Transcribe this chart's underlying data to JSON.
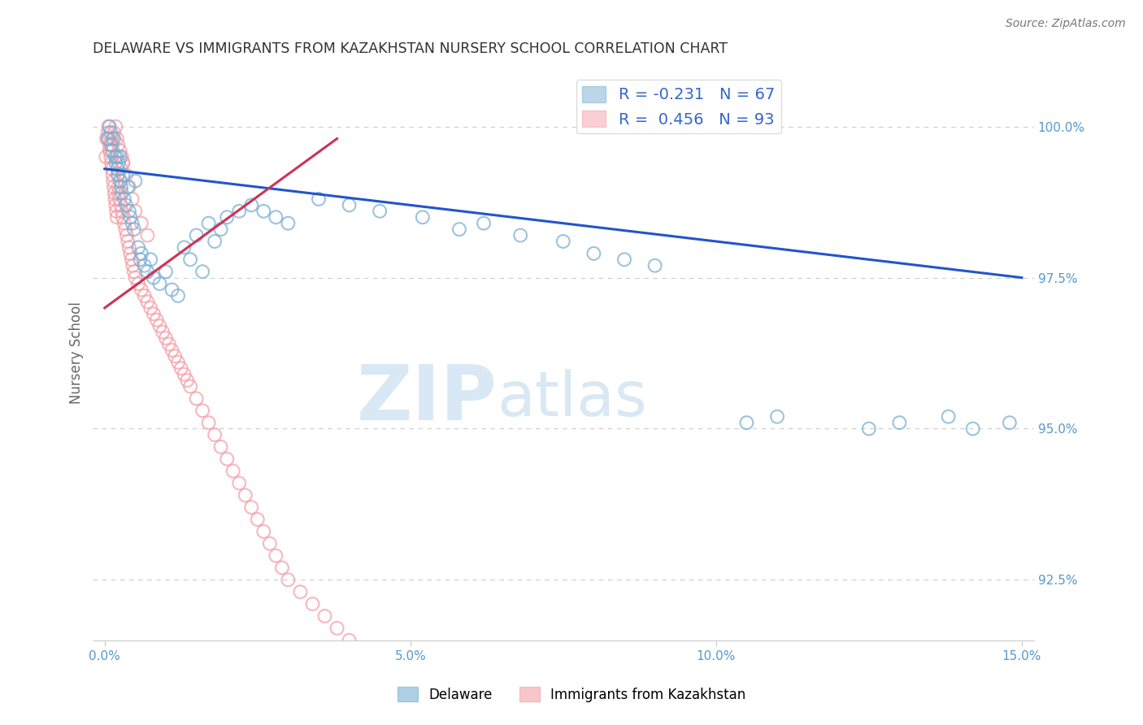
{
  "title": "DELAWARE VS IMMIGRANTS FROM KAZAKHSTAN NURSERY SCHOOL CORRELATION CHART",
  "source": "Source: ZipAtlas.com",
  "ylabel": "Nursery School",
  "xlim": [
    -0.2,
    15.2
  ],
  "ylim": [
    91.5,
    101.0
  ],
  "xticks": [
    0.0,
    5.0,
    10.0,
    15.0
  ],
  "yticks": [
    92.5,
    95.0,
    97.5,
    100.0
  ],
  "xtick_labels": [
    "0.0%",
    "5.0%",
    "10.0%",
    "15.0%"
  ],
  "ytick_labels": [
    "92.5%",
    "95.0%",
    "97.5%",
    "100.0%"
  ],
  "delaware_color": "#7BAFD4",
  "kazakhstan_color": "#F4A0A8",
  "delaware_R": -0.231,
  "delaware_N": 67,
  "kazakhstan_R": 0.456,
  "kazakhstan_N": 93,
  "blue_line_color": "#2255CC",
  "pink_line_color": "#CC3355",
  "background_color": "#FFFFFF",
  "watermark_color": "#D8E8F5",
  "title_color": "#333333",
  "tick_color": "#5599CC",
  "ylabel_color": "#666666",
  "delaware_x": [
    0.05,
    0.08,
    0.1,
    0.12,
    0.13,
    0.15,
    0.17,
    0.18,
    0.2,
    0.21,
    0.22,
    0.23,
    0.25,
    0.26,
    0.27,
    0.28,
    0.3,
    0.32,
    0.35,
    0.38,
    0.4,
    0.42,
    0.45,
    0.48,
    0.5,
    0.55,
    0.58,
    0.6,
    0.65,
    0.7,
    0.75,
    0.8,
    0.9,
    1.0,
    1.1,
    1.2,
    1.3,
    1.4,
    1.5,
    1.6,
    1.7,
    1.8,
    1.9,
    2.0,
    2.2,
    2.4,
    2.6,
    2.8,
    3.0,
    3.5,
    4.0,
    4.5,
    5.2,
    5.8,
    6.2,
    6.8,
    7.5,
    8.0,
    8.5,
    9.0,
    10.5,
    11.0,
    12.5,
    13.0,
    13.8,
    14.2,
    14.8
  ],
  "delaware_y": [
    99.8,
    100.0,
    99.9,
    99.7,
    99.6,
    99.8,
    99.5,
    99.4,
    99.5,
    99.3,
    99.2,
    99.4,
    99.5,
    99.1,
    99.0,
    98.9,
    99.2,
    98.8,
    98.7,
    99.0,
    98.6,
    98.5,
    98.4,
    98.3,
    99.1,
    98.0,
    97.8,
    97.9,
    97.7,
    97.6,
    97.8,
    97.5,
    97.4,
    97.6,
    97.3,
    97.2,
    98.0,
    97.8,
    98.2,
    97.6,
    98.4,
    98.1,
    98.3,
    98.5,
    98.6,
    98.7,
    98.6,
    98.5,
    98.4,
    98.8,
    98.7,
    98.6,
    98.5,
    98.3,
    98.4,
    98.2,
    98.1,
    97.9,
    97.8,
    97.7,
    95.1,
    95.2,
    95.0,
    95.1,
    95.2,
    95.0,
    95.1
  ],
  "kazakhstan_x": [
    0.02,
    0.03,
    0.05,
    0.06,
    0.07,
    0.08,
    0.09,
    0.1,
    0.11,
    0.12,
    0.13,
    0.14,
    0.15,
    0.16,
    0.17,
    0.18,
    0.19,
    0.2,
    0.21,
    0.22,
    0.23,
    0.24,
    0.25,
    0.26,
    0.27,
    0.28,
    0.29,
    0.3,
    0.32,
    0.34,
    0.36,
    0.38,
    0.4,
    0.42,
    0.44,
    0.46,
    0.48,
    0.5,
    0.55,
    0.6,
    0.65,
    0.7,
    0.75,
    0.8,
    0.85,
    0.9,
    0.95,
    1.0,
    1.05,
    1.1,
    1.15,
    1.2,
    1.25,
    1.3,
    1.35,
    1.4,
    1.5,
    1.6,
    1.7,
    1.8,
    1.9,
    2.0,
    2.1,
    2.2,
    2.3,
    2.4,
    2.5,
    2.6,
    2.7,
    2.8,
    2.9,
    3.0,
    3.2,
    3.4,
    3.6,
    3.8,
    4.0,
    0.08,
    0.1,
    0.12,
    0.15,
    0.18,
    0.2,
    0.22,
    0.25,
    0.28,
    0.3,
    0.35,
    0.4,
    0.45,
    0.5,
    0.6,
    0.7
  ],
  "kazakhstan_y": [
    99.5,
    99.8,
    99.9,
    100.0,
    99.8,
    99.7,
    99.6,
    99.5,
    99.4,
    99.3,
    99.2,
    99.1,
    99.0,
    98.9,
    98.8,
    98.7,
    98.6,
    98.5,
    99.2,
    99.0,
    98.9,
    98.8,
    99.1,
    98.7,
    99.3,
    98.6,
    98.5,
    99.4,
    98.4,
    98.3,
    98.2,
    98.1,
    98.0,
    97.9,
    97.8,
    97.7,
    97.6,
    97.5,
    97.4,
    97.3,
    97.2,
    97.1,
    97.0,
    96.9,
    96.8,
    96.7,
    96.6,
    96.5,
    96.4,
    96.3,
    96.2,
    96.1,
    96.0,
    95.9,
    95.8,
    95.7,
    95.5,
    95.3,
    95.1,
    94.9,
    94.7,
    94.5,
    94.3,
    94.1,
    93.9,
    93.7,
    93.5,
    93.3,
    93.1,
    92.9,
    92.7,
    92.5,
    92.3,
    92.1,
    91.9,
    91.7,
    91.5,
    99.6,
    99.7,
    99.8,
    99.9,
    100.0,
    99.8,
    99.7,
    99.6,
    99.5,
    99.4,
    99.2,
    99.0,
    98.8,
    98.6,
    98.4,
    98.2
  ],
  "del_line_x0": 0.0,
  "del_line_x1": 15.0,
  "del_line_y0": 99.3,
  "del_line_y1": 97.5,
  "kaz_line_x0": 0.0,
  "kaz_line_x1": 3.8,
  "kaz_line_y0": 97.0,
  "kaz_line_y1": 99.8
}
